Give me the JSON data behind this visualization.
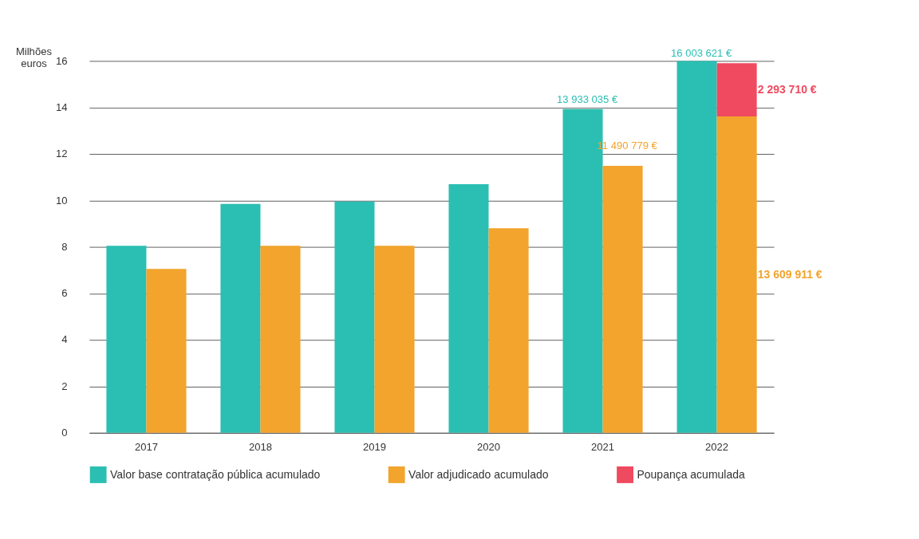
{
  "chart_data": {
    "type": "bar",
    "ylabel": "Milhões euros",
    "categories": [
      "2017",
      "2018",
      "2019",
      "2020",
      "2021",
      "2022"
    ],
    "series": [
      {
        "name": "Valor base contratação pública acumulado",
        "color": "#2bbfb3",
        "values": [
          8.05,
          9.85,
          9.95,
          10.7,
          13.933035,
          16.0
        ]
      },
      {
        "name": "Valor adjudicado acumulado",
        "color": "#f2a42c",
        "values": [
          7.05,
          8.05,
          8.05,
          8.8,
          11.490779,
          13.609911
        ]
      },
      {
        "name": "Poupança acumulada",
        "color": "#ef4a5f",
        "values": [
          null,
          null,
          null,
          null,
          null,
          2.29371
        ],
        "base": [
          null,
          null,
          null,
          null,
          null,
          13.609911
        ]
      }
    ],
    "annotations": [
      {
        "text": "13 933 035 €",
        "x": "2021",
        "y": 13.933035
      },
      {
        "text": "16 003 621 €",
        "x": "2022",
        "y": 16.0
      },
      {
        "text": "11 490 779 €",
        "x": "2021",
        "y": 11.490779
      },
      "2 293 710 €",
      "13 609 911 €"
    ],
    "ylim": [
      0,
      16
    ],
    "yticks": [
      0,
      2,
      4,
      6,
      8,
      10,
      12,
      14,
      16
    ],
    "grid": "y",
    "legend": "bottom"
  }
}
